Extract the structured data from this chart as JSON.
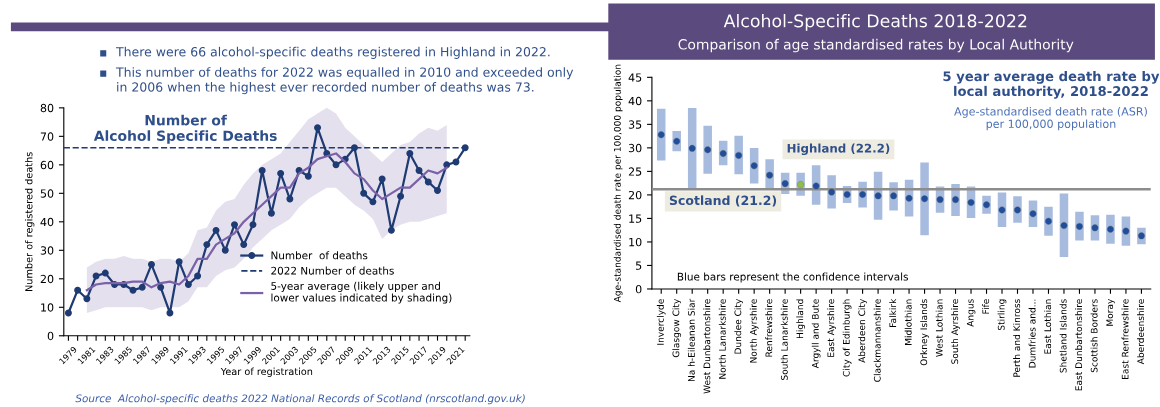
{
  "chart_data": [
    {
      "type": "line",
      "title": "Number of\nAlcohol Specific Deaths",
      "xlabel": "Year of registration",
      "ylabel": "Number of registered deaths",
      "annotations": [
        "There were 66 alcohol-specific deaths registered in Highland in 2022.",
        "This number of deaths for 2022 was equalled in 2010 and exceeded only\nin 2006 when the highest ever recorded number of deaths was 73.",
        "Source  Alcohol-specific deaths 2022 National Records of Scotland (nrscotland.gov.uk)"
      ],
      "x": [
        1979,
        1980,
        1981,
        1982,
        1983,
        1984,
        1985,
        1986,
        1987,
        1988,
        1989,
        1990,
        1991,
        1992,
        1993,
        1994,
        1995,
        1996,
        1997,
        1998,
        1999,
        2000,
        2001,
        2002,
        2003,
        2004,
        2005,
        2006,
        2007,
        2008,
        2009,
        2010,
        2011,
        2012,
        2013,
        2014,
        2015,
        2016,
        2017,
        2018,
        2019,
        2020,
        2021,
        2022
      ],
      "series": [
        {
          "name": "Number  of deaths",
          "color": "#1f3b73",
          "marker": "circle",
          "values": [
            8,
            16,
            13,
            21,
            22,
            18,
            18,
            16,
            17,
            25,
            17,
            8,
            26,
            18,
            21,
            32,
            37,
            30,
            39,
            32,
            39,
            58,
            43,
            57,
            48,
            58,
            56,
            73,
            64,
            60,
            62,
            66,
            50,
            47,
            55,
            37,
            49,
            64,
            58,
            54,
            51,
            60,
            61,
            66
          ]
        },
        {
          "name": "5-year average (likely upper and\nlower values indicated by shading)",
          "color": "#7b62a8",
          "x": [
            1981,
            1982,
            1983,
            1984,
            1985,
            1986,
            1987,
            1988,
            1989,
            1990,
            1991,
            1992,
            1993,
            1994,
            1995,
            1996,
            1997,
            1998,
            1999,
            2000,
            2001,
            2002,
            2003,
            2004,
            2005,
            2006,
            2007,
            2008,
            2009,
            2010,
            2011,
            2012,
            2013,
            2014,
            2015,
            2016,
            2017,
            2018,
            2019,
            2020
          ],
          "values": [
            16,
            18,
            18.5,
            18.5,
            18.5,
            19,
            19,
            17,
            18.5,
            19,
            18,
            21,
            27,
            27,
            32,
            34,
            36,
            40,
            43,
            46,
            49,
            52,
            52,
            57,
            59,
            62,
            63,
            64,
            61,
            57,
            55,
            51,
            48,
            50,
            52,
            52,
            55,
            58,
            57,
            59
          ],
          "lower": [
            8,
            9,
            10,
            10,
            10,
            10,
            10,
            9,
            10,
            10,
            10,
            12,
            17,
            17,
            21,
            23,
            24,
            27,
            31,
            34,
            37,
            39,
            41,
            45,
            48,
            50,
            52,
            52,
            49,
            46,
            44,
            41,
            34,
            37,
            39,
            40,
            40,
            41,
            42,
            43
          ],
          "upper": [
            24,
            26,
            27,
            27,
            28,
            27,
            27,
            26,
            27,
            27,
            26,
            29,
            37,
            38,
            44,
            47,
            48,
            53,
            57,
            60,
            62,
            64,
            68,
            72,
            76,
            78,
            80,
            78,
            73,
            70,
            67,
            64,
            61,
            64,
            67,
            68,
            71,
            73,
            72,
            74
          ]
        }
      ],
      "ref_lines": [
        {
          "axis": "y",
          "value": 66,
          "label": "2022 Number of deaths",
          "color": "#1f3b73",
          "line_style": "dashed"
        }
      ],
      "xlim": [
        1978.5,
        2022.5
      ],
      "xticks": [
        1979,
        {
          "value": 1980,
          "label": null
        },
        1981,
        {
          "value": 1982,
          "label": null
        },
        1983,
        {
          "value": 1984,
          "label": null
        },
        1985,
        {
          "value": 1986,
          "label": null
        },
        1987,
        {
          "value": 1988,
          "label": null
        },
        1989,
        {
          "value": 1990,
          "label": null
        },
        1991,
        {
          "value": 1992,
          "label": null
        },
        1993,
        {
          "value": 1994,
          "label": null
        },
        1995,
        {
          "value": 1996,
          "label": null
        },
        1997,
        {
          "value": 1998,
          "label": null
        },
        1999,
        {
          "value": 2000,
          "label": null
        },
        2001,
        {
          "value": 2002,
          "label": null
        },
        2003,
        {
          "value": 2004,
          "label": null
        },
        2005,
        {
          "value": 2006,
          "label": null
        },
        2007,
        {
          "value": 2008,
          "label": null
        },
        2009,
        {
          "value": 2010,
          "label": null
        },
        2011,
        {
          "value": 2012,
          "label": null
        },
        2013,
        {
          "value": 2014,
          "label": null
        },
        2015,
        {
          "value": 2016,
          "label": null
        },
        2017,
        {
          "value": 2018,
          "label": null
        },
        2019,
        {
          "value": 2020,
          "label": null
        },
        2021,
        {
          "value": 2022,
          "label": null
        }
      ],
      "ylim": [
        0,
        80
      ],
      "yticks": [
        0,
        10,
        20,
        30,
        40,
        50,
        60,
        70,
        80
      ],
      "grid": false,
      "legend": "bottom right"
    },
    {
      "type": "bar",
      "title": "Alcohol-Specific Deaths 2018-2022",
      "subtitle": "Comparison of age standardised rates by Local Authority",
      "ylabel": "Age-standardised death rate per 100,000 population",
      "annotations": [
        "5 year average death rate by\nlocal authority, 2018-2022",
        "Age-standardised death rate (ASR)\nper 100,000 population",
        "Blue bars represent the confidence intervals",
        "Highland (22.2)"
      ],
      "categories": [
        "Inverclyde",
        "Glasgow City",
        "Na h-Eileanan Siar",
        "West Dunbartonshire",
        "North Lanarkshire",
        "Dundee City",
        "North Ayrshire",
        "Renfrewshire",
        "South Lanarkshire",
        "Highland",
        "Argyll and Bute",
        "East Ayrshire",
        "City of Edinburgh",
        "Aberdeen City",
        "Clackmannanshire",
        "Falkirk",
        "Midlothian",
        "Orkney Islands",
        "West Lothian",
        "South Ayrshire",
        "Angus",
        "Fife",
        "Stirling",
        "Perth and Kinross",
        "Dumfries and...",
        "East Lothian",
        "Shetland Islands",
        "East Dunbartonshire",
        "Scottish Borders",
        "Moray",
        "East Renfrewshire",
        "Aberdeenshire"
      ],
      "series": [
        {
          "type": "bar",
          "color": "#a7bbdf",
          "values": [
            11.0,
            4.3,
            17.1,
            10.2,
            5.2,
            8.2,
            7.6,
            6.3,
            4.5,
            4.9,
            8.4,
            7.1,
            3.6,
            5.5,
            10.2,
            6.0,
            7.8,
            15.5,
            5.6,
            6.8,
            6.7,
            3.8,
            7.3,
            5.6,
            5.6,
            6.2,
            13.5,
            6.1,
            5.4,
            6.2,
            6.2,
            3.5
          ],
          "base": [
            27.3,
            29.3,
            21.4,
            24.5,
            26.3,
            24.4,
            22.4,
            21.3,
            20.2,
            19.8,
            17.9,
            17.1,
            18.3,
            17.3,
            14.7,
            16.7,
            15.4,
            11.4,
            16.2,
            15.5,
            15.1,
            16.0,
            13.2,
            14.1,
            13.2,
            11.3,
            6.8,
            10.3,
            10.3,
            9.6,
            9.2,
            9.5
          ]
        },
        {
          "type": "scatter",
          "x": [
            "Inverclyde",
            "Glasgow City",
            "Na h-Eileanan Siar",
            "West Dunbartonshire",
            "North Lanarkshire",
            "Dundee City",
            "North Ayrshire",
            "Renfrewshire",
            "South Lanarkshire",
            "Highland",
            "Argyll and Bute",
            "East Ayrshire",
            "City of Edinburgh",
            "Aberdeen City",
            "Clackmannanshire",
            "Falkirk",
            "Midlothian",
            "Orkney Islands",
            "West Lothian",
            "South Ayrshire",
            "Angus",
            "Fife",
            "Stirling",
            "Perth and Kinross",
            "Dumfries and...",
            "East Lothian",
            "Shetland Islands",
            "East Dunbartonshire",
            "Scottish Borders",
            "Moray",
            "East Renfrewshire",
            "Aberdeenshire"
          ],
          "marker": "circle",
          "values": [
            32.8,
            31.4,
            29.9,
            29.6,
            28.8,
            28.4,
            26.2,
            24.2,
            22.4,
            22.2,
            21.9,
            20.6,
            20.1,
            20.1,
            19.8,
            19.8,
            19.3,
            19.2,
            19.0,
            19.0,
            18.4,
            17.9,
            16.8,
            16.8,
            16.0,
            14.4,
            13.5,
            13.3,
            13.0,
            12.7,
            12.3,
            11.3
          ],
          "colors": [
            "#1f4e9c",
            "#1f4e9c",
            "#1f4e9c",
            "#1f4e9c",
            "#1f4e9c",
            "#1f4e9c",
            "#1f4e9c",
            "#1f4e9c",
            "#1f4e9c",
            "#8fc045",
            "#1f4e9c",
            "#1f4e9c",
            "#1f4e9c",
            "#1f4e9c",
            "#1f4e9c",
            "#1f4e9c",
            "#1f4e9c",
            "#1f4e9c",
            "#1f4e9c",
            "#1f4e9c",
            "#1f4e9c",
            "#1f4e9c",
            "#1f4e9c",
            "#1f4e9c",
            "#1f4e9c",
            "#1f4e9c",
            "#1f4e9c",
            "#1f4e9c",
            "#1f4e9c",
            "#1f4e9c",
            "#1f4e9c",
            "#1f4e9c"
          ]
        }
      ],
      "ref_lines": [
        {
          "axis": "y",
          "value": 21.2,
          "label": "Scotland (21.2)",
          "color": "#8c8c8c",
          "line_style": "solid"
        }
      ],
      "ylim": [
        0,
        45
      ],
      "yticks": [
        0,
        5,
        10,
        15,
        20,
        25,
        30,
        35,
        40,
        45
      ],
      "grid": false
    }
  ]
}
